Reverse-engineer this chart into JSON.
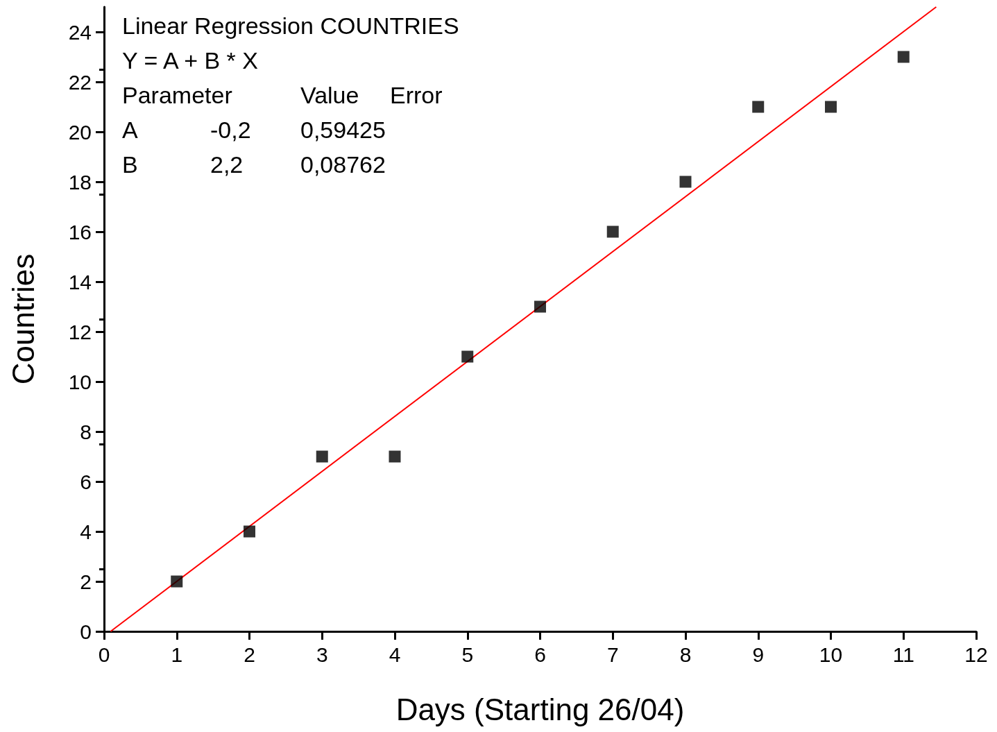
{
  "chart_data": {
    "type": "scatter",
    "xlabel": "Days (Starting 26/04)",
    "ylabel": "Countries",
    "x": [
      1,
      2,
      3,
      4,
      5,
      6,
      7,
      8,
      9,
      10,
      11
    ],
    "series": [
      {
        "color": "#000000",
        "marker": "square",
        "values": [
          2,
          4,
          7,
          7,
          11,
          13,
          16,
          18,
          21,
          21,
          23
        ]
      },
      {
        "type": "line",
        "color": "#ff0000",
        "marker": "none",
        "line_style": "solid",
        "x": [
          0.09,
          11.45
        ],
        "values": [
          0,
          25
        ]
      }
    ],
    "xlim": [
      0,
      12
    ],
    "xticks": [
      0,
      1,
      2,
      3,
      4,
      5,
      6,
      7,
      8,
      9,
      10,
      11,
      12
    ],
    "ylim": [
      0,
      25
    ],
    "yticks": [
      0,
      2,
      4,
      6,
      8,
      10,
      12,
      14,
      16,
      18,
      20,
      22,
      24
    ],
    "grid": false,
    "annotations": [
      "Linear Regression COUNTRIES",
      "Y = A + B * X",
      "Parameter\t\tValue\tError",
      "A\t-0,2\t0,59425",
      "B\t2,2\t0,08762"
    ]
  }
}
